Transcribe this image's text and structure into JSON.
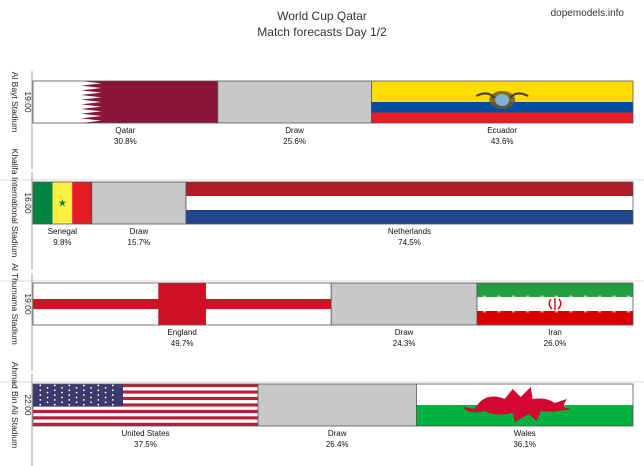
{
  "header": {
    "title": "World Cup Qatar",
    "subtitle": "Match forecasts Day 1/2",
    "brand": "dopemodels.info"
  },
  "chart_data": {
    "type": "bar",
    "orientation": "horizontal-stacked-100",
    "title": "World Cup Qatar",
    "subtitle": "Match forecasts Day 1/2",
    "unit": "%",
    "matches": [
      {
        "time": "19:00",
        "stadium": "Al Bayt Stadium",
        "segments": [
          {
            "label": "Qatar",
            "value": 30.8,
            "display": "30.8%",
            "flag": "qatar-flag"
          },
          {
            "label": "Draw",
            "value": 25.6,
            "display": "25.6%",
            "flag": "draw-gray"
          },
          {
            "label": "Ecuador",
            "value": 43.6,
            "display": "43.6%",
            "flag": "ecuador-flag"
          }
        ]
      },
      {
        "time": "16:00",
        "stadium": "Khalifa International Stadium",
        "segments": [
          {
            "label": "Senegal",
            "value": 9.8,
            "display": "9.8%",
            "flag": "senegal-flag"
          },
          {
            "label": "Draw",
            "value": 15.7,
            "display": "15.7%",
            "flag": "draw-gray"
          },
          {
            "label": "Netherlands",
            "value": 74.5,
            "display": "74.5%",
            "flag": "netherlands-flag"
          }
        ]
      },
      {
        "time": "19:00",
        "stadium": "Al Thumama Stadium",
        "segments": [
          {
            "label": "England",
            "value": 49.7,
            "display": "49.7%",
            "flag": "england-flag"
          },
          {
            "label": "Draw",
            "value": 24.3,
            "display": "24.3%",
            "flag": "draw-gray"
          },
          {
            "label": "Iran",
            "value": 26.0,
            "display": "26.0%",
            "flag": "iran-flag"
          }
        ]
      },
      {
        "time": "22:00",
        "stadium": "Ahmad Bin Ali Stadium",
        "segments": [
          {
            "label": "United States",
            "value": 37.5,
            "display": "37.5%",
            "flag": "usa-flag"
          },
          {
            "label": "Draw",
            "value": 26.4,
            "display": "26.4%",
            "flag": "draw-gray"
          },
          {
            "label": "Wales",
            "value": 36.1,
            "display": "36.1%",
            "flag": "wales-flag"
          }
        ]
      }
    ],
    "colors": {
      "qatar_maroon": "#8a1538",
      "draw_gray": "#c8c8c8",
      "ecuador_yellow": "#ffdd00",
      "ecuador_blue": "#034ea2",
      "ecuador_red": "#ed1c24",
      "senegal_green": "#00853f",
      "senegal_yellow": "#fdef42",
      "senegal_red": "#e31b23",
      "netherlands_red": "#ae1c28",
      "netherlands_blue": "#21468b",
      "england_red": "#ce1124",
      "iran_green": "#239f40",
      "iran_red": "#da0000",
      "usa_red": "#b22234",
      "usa_blue": "#3c3b6e",
      "wales_green": "#00b140",
      "wales_red": "#d30731"
    },
    "grid": false,
    "legend": "none"
  }
}
